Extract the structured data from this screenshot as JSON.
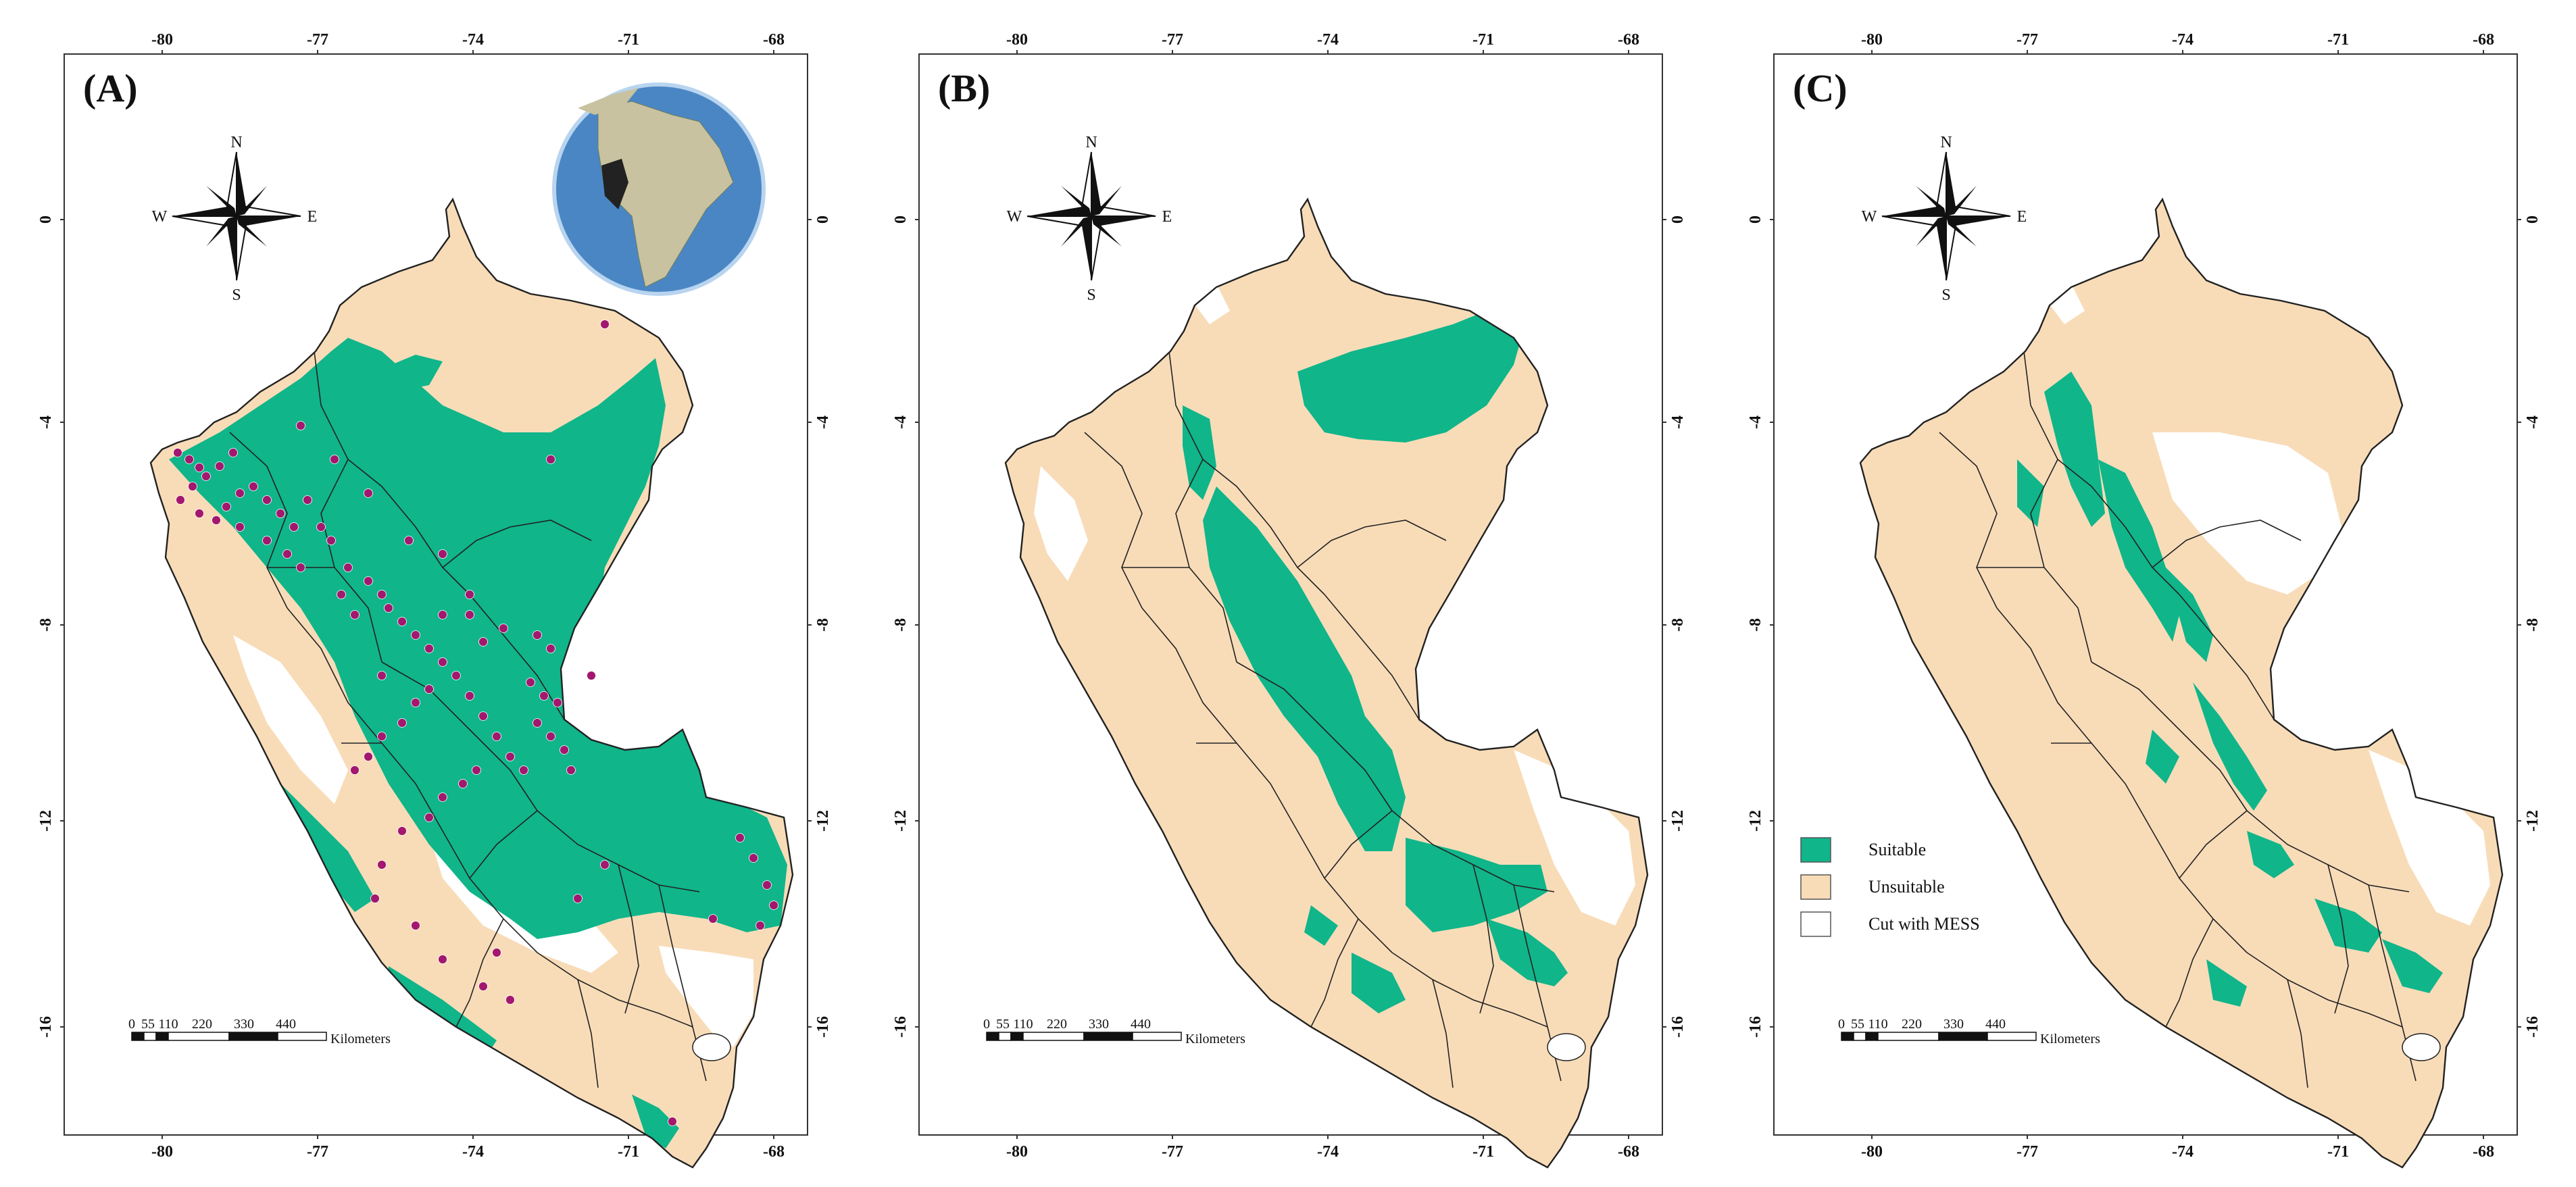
{
  "panels": [
    {
      "label": "(A)",
      "has_inset_globe": true,
      "has_occurrence_points": true,
      "has_legend": false,
      "suitable_extent": "large",
      "top_ticks": [
        "-80",
        "-77",
        "-74",
        "-71",
        "-68"
      ],
      "bottom_ticks": [
        "-80",
        "-77",
        "-74",
        "-71",
        "-68"
      ],
      "left_ticks": [
        "0",
        "-4",
        "-8",
        "-12",
        "-16"
      ],
      "right_ticks": [
        "0",
        "-4",
        "-8",
        "-12",
        "-16"
      ]
    },
    {
      "label": "(B)",
      "has_inset_globe": false,
      "has_occurrence_points": false,
      "has_legend": false,
      "suitable_extent": "medium",
      "top_ticks": [
        "-80",
        "-77",
        "-74",
        "-71",
        "-68"
      ],
      "bottom_ticks": [
        "-80",
        "-77",
        "-74",
        "-71",
        "-68"
      ],
      "left_ticks": [
        "0",
        "-4",
        "-8",
        "-12",
        "-16"
      ],
      "right_ticks": [
        "0",
        "-4",
        "-8",
        "-12",
        "-16"
      ]
    },
    {
      "label": "(C)",
      "has_inset_globe": false,
      "has_occurrence_points": false,
      "has_legend": true,
      "suitable_extent": "small",
      "top_ticks": [
        "-80",
        "-77",
        "-74",
        "-71",
        "-68"
      ],
      "bottom_ticks": [
        "-80",
        "-77",
        "-74",
        "-71",
        "-68"
      ],
      "left_ticks": [
        "0",
        "-4",
        "-8",
        "-12",
        "-16"
      ],
      "right_ticks": [
        "0",
        "-4",
        "-8",
        "-12",
        "-16"
      ]
    }
  ],
  "compass": {
    "n": "N",
    "s": "S",
    "e": "E",
    "w": "W"
  },
  "scale_bar": {
    "ticks": [
      "0",
      "55",
      "110",
      "220",
      "330",
      "440"
    ],
    "unit": "Kilometers"
  },
  "legend": {
    "items": [
      {
        "label": "Suitable",
        "color": "#10b58a"
      },
      {
        "label": "Unsuitable",
        "color": "#f8dcb8"
      },
      {
        "label": "Cut with MESS",
        "color": "#ffffff"
      }
    ]
  },
  "colors": {
    "suitable": "#10b58a",
    "unsuitable": "#f8dcb8",
    "mess": "#ffffff",
    "points": "#a3186e",
    "border": "#222222",
    "ocean": "#4a86c4"
  }
}
